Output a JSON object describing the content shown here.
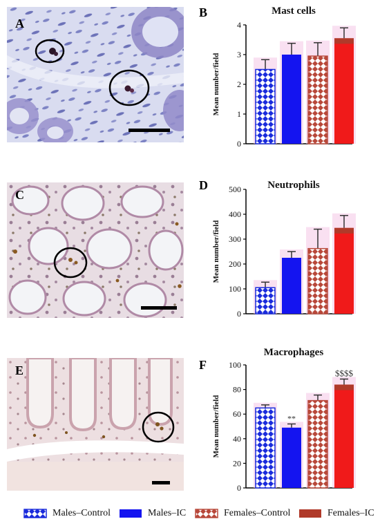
{
  "panels": {
    "a": "A",
    "b": "B",
    "c": "C",
    "d": "D",
    "e": "E",
    "f": "F"
  },
  "legend": [
    {
      "label": "Males–Control",
      "key": "males_control"
    },
    {
      "label": "Males–IC",
      "key": "males_ic"
    },
    {
      "label": "Females–Control",
      "key": "females_control"
    },
    {
      "label": "Females–IC",
      "key": "females_ic"
    }
  ],
  "colors": {
    "males_control": "#1a2bdc",
    "males_ic": "#1414f0",
    "females_control": "#b8483a",
    "females_ic": "#f01a1a",
    "females_ic_cap": "#b03a2a",
    "pink_halo": "#f4c6e6"
  },
  "chart_data": [
    {
      "type": "bar",
      "title": "Mast cells",
      "ylabel": "Mean number/field",
      "categories": [
        "Males–Control",
        "Males–IC",
        "Females–Control",
        "Females–IC"
      ],
      "values": [
        2.5,
        3.0,
        2.95,
        3.55
      ],
      "errors": [
        0.33,
        0.38,
        0.45,
        0.35
      ],
      "ylim": [
        0,
        4
      ],
      "yticks": [
        "0",
        "1",
        "2",
        "3",
        "4"
      ],
      "annotations": [
        "",
        "",
        "",
        ""
      ]
    },
    {
      "type": "bar",
      "title": "Neutrophils",
      "ylabel": "Mean number/field",
      "categories": [
        "Males–Control",
        "Males–IC",
        "Females–Control",
        "Females–IC"
      ],
      "values": [
        105,
        225,
        262,
        345
      ],
      "errors": [
        22,
        25,
        78,
        50
      ],
      "ylim": [
        0,
        500
      ],
      "yticks": [
        "0",
        "100",
        "200",
        "300",
        "400",
        "500"
      ],
      "annotations": [
        "",
        "",
        "",
        ""
      ]
    },
    {
      "type": "bar",
      "title": "Macrophages",
      "ylabel": "Mean number/field",
      "categories": [
        "Males–Control",
        "Males–IC",
        "Females–Control",
        "Females–IC"
      ],
      "values": [
        65,
        49,
        71,
        84
      ],
      "errors": [
        2.5,
        3,
        4.5,
        4.5
      ],
      "ylim": [
        0,
        100
      ],
      "yticks": [
        "0",
        "20",
        "40",
        "60",
        "80",
        "100"
      ],
      "annotations": [
        "",
        "**",
        "",
        "$$$$"
      ]
    }
  ]
}
